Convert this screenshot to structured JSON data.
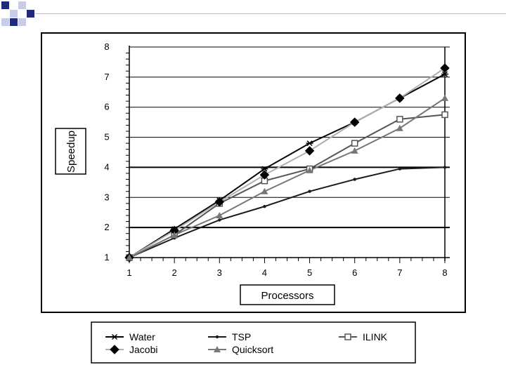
{
  "chart_data": {
    "type": "line",
    "xlabel": "Processors",
    "ylabel": "Speedup",
    "x": [
      1,
      2,
      3,
      4,
      5,
      6,
      7,
      8
    ],
    "xlim": [
      1,
      8
    ],
    "ylim": [
      1,
      8
    ],
    "x_ticks": [
      "1",
      "2",
      "3",
      "4",
      "5",
      "6",
      "7",
      "8"
    ],
    "y_ticks": [
      "1",
      "2",
      "3",
      "4",
      "5",
      "6",
      "7",
      "8"
    ],
    "grid": "horizontal",
    "legend_position": "bottom",
    "series": [
      {
        "name": "Water",
        "values": [
          1,
          1.95,
          2.9,
          3.95,
          4.8,
          5.5,
          6.3,
          7.1
        ]
      },
      {
        "name": "TSP",
        "values": [
          1,
          1.65,
          2.25,
          2.7,
          3.2,
          3.6,
          3.95,
          4.0
        ]
      },
      {
        "name": "ILINK",
        "values": [
          1,
          1.75,
          2.8,
          3.55,
          3.95,
          4.8,
          5.6,
          5.75
        ]
      },
      {
        "name": "Jacobi",
        "values": [
          1,
          1.9,
          2.85,
          3.75,
          4.55,
          5.5,
          6.3,
          7.3
        ]
      },
      {
        "name": "Quicksort",
        "values": [
          1,
          1.75,
          2.4,
          3.2,
          3.9,
          4.55,
          5.3,
          6.3
        ]
      }
    ]
  },
  "styles": {
    "colors": {
      "Water": "#000000",
      "TSP": "#1a1a1a",
      "ILINK": "#555555",
      "Jacobi": "#b0b0b0",
      "Quicksort": "#777777"
    },
    "markers": {
      "Water": "star",
      "TSP": "dot",
      "ILINK": "square",
      "Jacobi": "diamond",
      "Quicksort": "triangle"
    },
    "bullet_color": "#1f2a7a"
  }
}
